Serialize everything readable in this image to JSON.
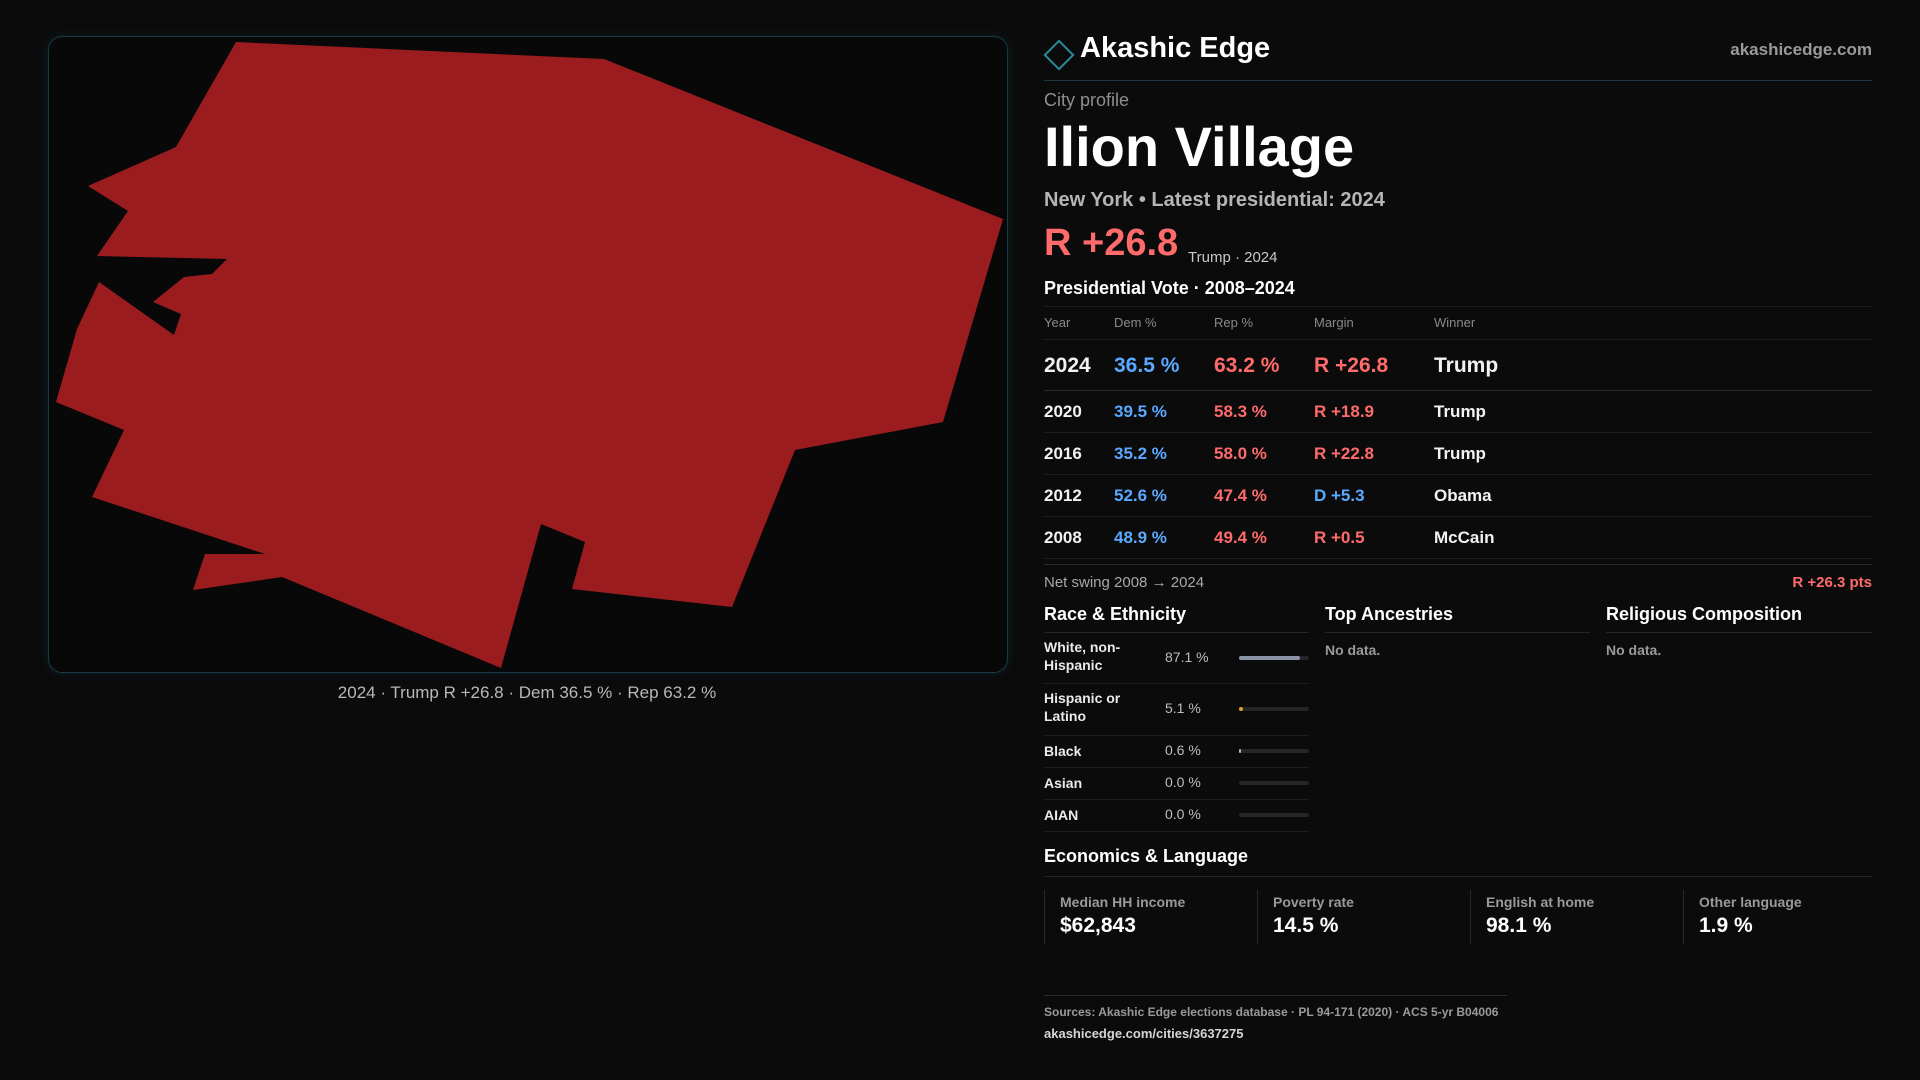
{
  "map": {
    "fill_color": "#9b1c1f",
    "caption": "2024 · Trump R +26.8 · Dem 36.5 % · Rep 63.2 %"
  },
  "header": {
    "brand": "Akashic Edge",
    "domain": "akashicedge.com"
  },
  "profile": {
    "kicker": "City profile",
    "name": "Ilion Village",
    "subtitle": "New York  • Latest presidential: 2024",
    "hero_margin": "R +26.8",
    "hero_note": "Trump · 2024"
  },
  "vote": {
    "title": "Presidential Vote · 2008–2024",
    "headers": [
      "Year",
      "Dem %",
      "Rep %",
      "Margin",
      "Winner"
    ],
    "rows": [
      {
        "year": "2024",
        "dem": "36.5 %",
        "rep": "63.2 %",
        "margin": "R +26.8",
        "winner": "Trump",
        "party": "R"
      },
      {
        "year": "2020",
        "dem": "39.5 %",
        "rep": "58.3 %",
        "margin": "R +18.9",
        "winner": "Trump",
        "party": "R"
      },
      {
        "year": "2016",
        "dem": "35.2 %",
        "rep": "58.0 %",
        "margin": "R +22.8",
        "winner": "Trump",
        "party": "R"
      },
      {
        "year": "2012",
        "dem": "52.6 %",
        "rep": "47.4 %",
        "margin": "D +5.3",
        "winner": "Obama",
        "party": "D"
      },
      {
        "year": "2008",
        "dem": "48.9 %",
        "rep": "49.4 %",
        "margin": "R +0.5",
        "winner": "McCain",
        "party": "R"
      }
    ],
    "swing_label": "Net swing 2008 → 2024",
    "swing_value": "R +26.3 pts"
  },
  "race": {
    "title": "Race & Ethnicity",
    "rows": [
      {
        "label": "White, non-Hispanic",
        "value": "87.1 %",
        "pct": 87.1,
        "color": "#8a94a6"
      },
      {
        "label": "Hispanic or Latino",
        "value": "5.1 %",
        "pct": 5.1,
        "color": "#e0a030"
      },
      {
        "label": "Black",
        "value": "0.6 %",
        "pct": 0.6,
        "color": "#b0b8d0"
      },
      {
        "label": "Asian",
        "value": "0.0 %",
        "pct": 0.0,
        "color": "#8a94a6"
      },
      {
        "label": "AIAN",
        "value": "0.0 %",
        "pct": 0.0,
        "color": "#8a94a6"
      }
    ]
  },
  "ancestries": {
    "title": "Top Ancestries",
    "empty": "No data."
  },
  "religion": {
    "title": "Religious Composition",
    "empty": "No data."
  },
  "economics": {
    "title": "Economics & Language",
    "cells": [
      {
        "label": "Median HH income",
        "value": "$62,843"
      },
      {
        "label": "Poverty rate",
        "value": "14.5 %"
      },
      {
        "label": "English at home",
        "value": "98.1 %"
      },
      {
        "label": "Other language",
        "value": "1.9 %"
      }
    ]
  },
  "footer": {
    "sources": "Sources: Akashic Edge elections database · PL 94-171 (2020) · ACS 5-yr B04006",
    "url": "akashicedge.com/cities/3637275"
  }
}
